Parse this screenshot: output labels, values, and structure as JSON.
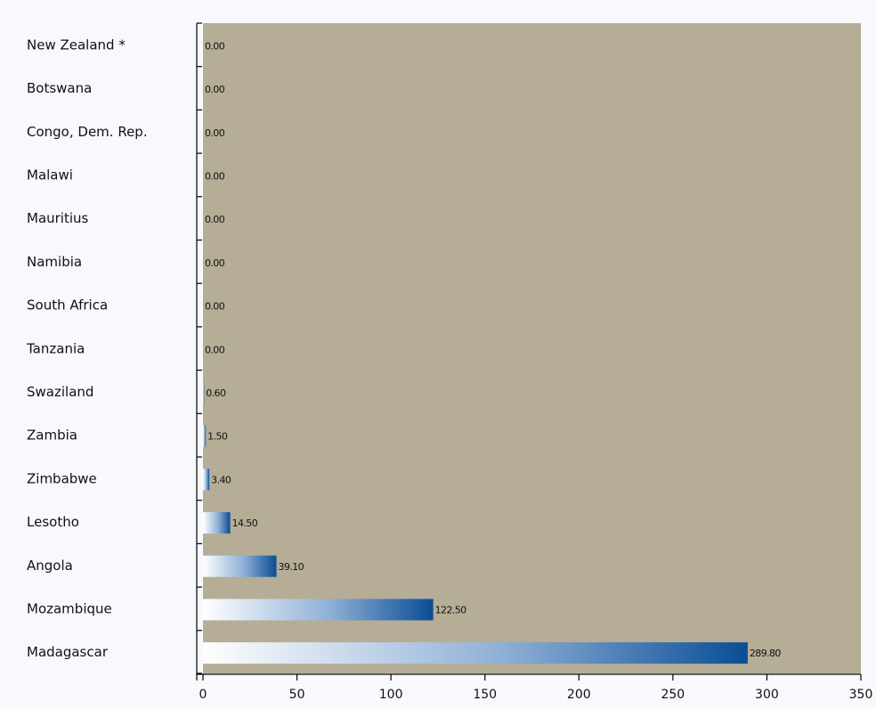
{
  "chart_data": {
    "type": "bar",
    "orientation": "horizontal",
    "title": "",
    "xlabel": "",
    "ylabel": "",
    "categories": [
      "New Zealand *",
      "Botswana",
      "Congo, Dem. Rep.",
      "Malawi",
      "Mauritius",
      "Namibia",
      "South Africa",
      "Tanzania",
      "Swaziland",
      "Zambia",
      "Zimbabwe",
      "Lesotho",
      "Angola",
      "Mozambique",
      "Madagascar"
    ],
    "values": [
      0,
      0,
      0,
      0,
      0,
      0,
      0,
      0,
      0.6,
      1.5,
      3.4,
      14.5,
      39.1,
      122.5,
      289.8
    ],
    "value_labels": [
      "0.00",
      "0.00",
      "0.00",
      "0.00",
      "0.00",
      "0.00",
      "0.00",
      "0.00",
      "0.60",
      "1.50",
      "3.40",
      "14.50",
      "39.10",
      "122.50",
      "289.80"
    ],
    "xlim": [
      0,
      350
    ],
    "x_ticks": [
      0,
      50,
      100,
      150,
      200,
      250,
      300,
      350
    ],
    "x_tick_labels": [
      "0",
      "50",
      "100",
      "150",
      "200",
      "250",
      "300",
      "350"
    ],
    "grid": false,
    "legend": "none",
    "colors": {
      "plot_background": "#b5ad96",
      "page_background": "#f7f9fd",
      "bar_start": "#ffffff",
      "bar_end": "#0a4d96",
      "axis": "#000000",
      "title_text": "#1e4f96"
    }
  }
}
